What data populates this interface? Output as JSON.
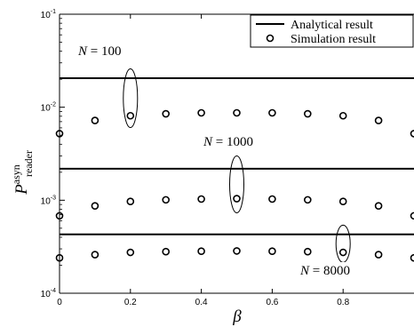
{
  "chart_data": {
    "type": "scatter",
    "xlabel": "β",
    "ylabel": {
      "main": "P",
      "superscript": "asyn",
      "subscript": "reader"
    },
    "xlim": [
      0,
      1
    ],
    "ylim": [
      0.0001,
      0.1
    ],
    "yscale": "log",
    "grid": false,
    "legend_position": "top-right",
    "x_ticks": [
      "0",
      "0.2",
      "0.4",
      "0.6",
      "0.8"
    ],
    "y_ticks": [
      {
        "base": "10",
        "exp": "-4"
      },
      {
        "base": "10",
        "exp": "-3"
      },
      {
        "base": "10",
        "exp": "-2"
      },
      {
        "base": "10",
        "exp": "-1"
      }
    ],
    "legend": [
      {
        "label": "Analytical result",
        "marker": "line"
      },
      {
        "label": "Simulation result",
        "marker": "circle"
      }
    ],
    "analytical": [
      {
        "group": "N = 100",
        "y": 0.0205
      },
      {
        "group": "N = 1000",
        "y": 0.00218
      },
      {
        "group": "N = 8000",
        "y": 0.00043
      }
    ],
    "simulation": [
      {
        "group": "N = 100",
        "x": [
          0,
          0.1,
          0.2,
          0.3,
          0.4,
          0.5,
          0.6,
          0.7,
          0.8,
          0.9,
          1.0
        ],
        "y": [
          0.0052,
          0.0072,
          0.0081,
          0.0085,
          0.0087,
          0.0087,
          0.0087,
          0.0085,
          0.0081,
          0.0072,
          0.0052
        ]
      },
      {
        "group": "N = 1000",
        "x": [
          0,
          0.1,
          0.2,
          0.3,
          0.4,
          0.5,
          0.6,
          0.7,
          0.8,
          0.9,
          1.0
        ],
        "y": [
          0.00068,
          0.00087,
          0.00097,
          0.00101,
          0.00103,
          0.00104,
          0.00103,
          0.00101,
          0.00097,
          0.00087,
          0.00068
        ]
      },
      {
        "group": "N = 8000",
        "x": [
          0,
          0.1,
          0.2,
          0.3,
          0.4,
          0.5,
          0.6,
          0.7,
          0.8,
          0.9,
          1.0
        ],
        "y": [
          0.00024,
          0.00026,
          0.000275,
          0.00028,
          0.000283,
          0.000285,
          0.000283,
          0.00028,
          0.000275,
          0.00026,
          0.00024
        ]
      }
    ],
    "annotations": [
      {
        "text": "N = 100",
        "lhs": "N",
        "rhs": "= 100",
        "ellipse_x": 0.2,
        "ellipse_y": 0.0125
      },
      {
        "text": "N = 1000",
        "lhs": "N",
        "rhs": "= 1000",
        "ellipse_x": 0.5,
        "ellipse_y": 0.00148
      },
      {
        "text": "N = 8000",
        "lhs": "N",
        "rhs": "= 8000",
        "ellipse_x": 0.8,
        "ellipse_y": 0.00034
      }
    ]
  }
}
